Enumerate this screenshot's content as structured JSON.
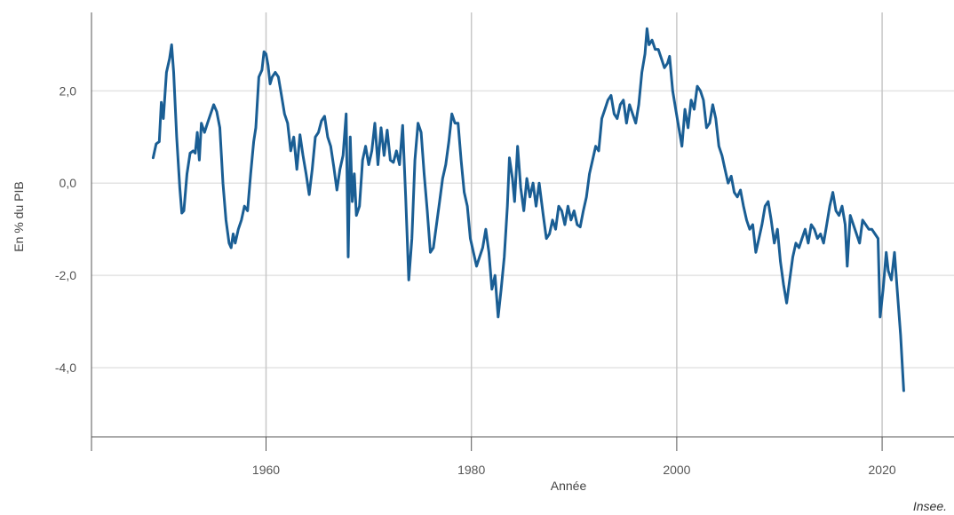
{
  "colors": {
    "series": "#1a5e94",
    "grid": "#e3e3e3",
    "vgrid": "#c8c8c8",
    "axis": "#555555"
  },
  "source_label": "Insee.",
  "chart_data": {
    "type": "line",
    "title": "",
    "xlabel": "Année",
    "ylabel": "En % du PIB",
    "xlim": [
      1943,
      2027
    ],
    "ylim": [
      -5.5,
      3.7
    ],
    "x_ticks": [
      1960,
      1980,
      2000,
      2020
    ],
    "x_tick_labels": [
      "1960",
      "1980",
      "2000",
      "2020"
    ],
    "y_ticks": [
      -4,
      -2,
      0,
      2
    ],
    "y_tick_labels": [
      "-4,0",
      "-2,0",
      "0,0",
      "2,0"
    ],
    "grid": true,
    "legend": "none",
    "series": [
      {
        "points": [
          [
            1949.0,
            0.55
          ],
          [
            1949.3,
            0.85
          ],
          [
            1949.6,
            0.9
          ],
          [
            1949.8,
            1.75
          ],
          [
            1950.0,
            1.4
          ],
          [
            1950.3,
            2.4
          ],
          [
            1950.6,
            2.7
          ],
          [
            1950.8,
            3.0
          ],
          [
            1951.0,
            2.4
          ],
          [
            1951.3,
            1.0
          ],
          [
            1951.6,
            -0.1
          ],
          [
            1951.8,
            -0.65
          ],
          [
            1952.0,
            -0.6
          ],
          [
            1952.3,
            0.2
          ],
          [
            1952.6,
            0.65
          ],
          [
            1952.9,
            0.7
          ],
          [
            1953.1,
            0.65
          ],
          [
            1953.3,
            1.1
          ],
          [
            1953.5,
            0.5
          ],
          [
            1953.7,
            1.3
          ],
          [
            1954.0,
            1.1
          ],
          [
            1954.3,
            1.3
          ],
          [
            1954.6,
            1.5
          ],
          [
            1954.9,
            1.7
          ],
          [
            1955.2,
            1.55
          ],
          [
            1955.5,
            1.2
          ],
          [
            1955.8,
            0.0
          ],
          [
            1956.1,
            -0.8
          ],
          [
            1956.4,
            -1.3
          ],
          [
            1956.6,
            -1.4
          ],
          [
            1956.8,
            -1.1
          ],
          [
            1957.0,
            -1.3
          ],
          [
            1957.3,
            -1.0
          ],
          [
            1957.6,
            -0.8
          ],
          [
            1957.9,
            -0.5
          ],
          [
            1958.2,
            -0.6
          ],
          [
            1958.5,
            0.2
          ],
          [
            1958.8,
            0.9
          ],
          [
            1959.0,
            1.2
          ],
          [
            1959.3,
            2.3
          ],
          [
            1959.6,
            2.45
          ],
          [
            1959.8,
            2.85
          ],
          [
            1960.0,
            2.8
          ],
          [
            1960.2,
            2.55
          ],
          [
            1960.4,
            2.15
          ],
          [
            1960.6,
            2.3
          ],
          [
            1960.9,
            2.4
          ],
          [
            1961.2,
            2.3
          ],
          [
            1961.5,
            1.9
          ],
          [
            1961.8,
            1.5
          ],
          [
            1962.1,
            1.3
          ],
          [
            1962.4,
            0.7
          ],
          [
            1962.7,
            1.0
          ],
          [
            1963.0,
            0.3
          ],
          [
            1963.3,
            1.05
          ],
          [
            1963.6,
            0.6
          ],
          [
            1963.9,
            0.2
          ],
          [
            1964.2,
            -0.25
          ],
          [
            1964.5,
            0.3
          ],
          [
            1964.8,
            1.0
          ],
          [
            1965.1,
            1.1
          ],
          [
            1965.4,
            1.35
          ],
          [
            1965.7,
            1.45
          ],
          [
            1966.0,
            1.0
          ],
          [
            1966.3,
            0.8
          ],
          [
            1966.6,
            0.35
          ],
          [
            1966.9,
            -0.15
          ],
          [
            1967.2,
            0.3
          ],
          [
            1967.5,
            0.6
          ],
          [
            1967.8,
            1.5
          ],
          [
            1968.0,
            -1.6
          ],
          [
            1968.2,
            1.0
          ],
          [
            1968.4,
            -0.4
          ],
          [
            1968.6,
            0.2
          ],
          [
            1968.8,
            -0.7
          ],
          [
            1969.1,
            -0.5
          ],
          [
            1969.4,
            0.5
          ],
          [
            1969.7,
            0.8
          ],
          [
            1970.0,
            0.4
          ],
          [
            1970.3,
            0.7
          ],
          [
            1970.6,
            1.3
          ],
          [
            1970.9,
            0.4
          ],
          [
            1971.2,
            1.2
          ],
          [
            1971.5,
            0.6
          ],
          [
            1971.8,
            1.15
          ],
          [
            1972.1,
            0.5
          ],
          [
            1972.4,
            0.45
          ],
          [
            1972.7,
            0.7
          ],
          [
            1973.0,
            0.4
          ],
          [
            1973.3,
            1.25
          ],
          [
            1973.6,
            -0.3
          ],
          [
            1973.9,
            -2.1
          ],
          [
            1974.2,
            -1.2
          ],
          [
            1974.5,
            0.5
          ],
          [
            1974.8,
            1.3
          ],
          [
            1975.1,
            1.1
          ],
          [
            1975.4,
            0.2
          ],
          [
            1975.7,
            -0.6
          ],
          [
            1976.0,
            -1.5
          ],
          [
            1976.3,
            -1.4
          ],
          [
            1976.6,
            -0.9
          ],
          [
            1976.9,
            -0.4
          ],
          [
            1977.2,
            0.1
          ],
          [
            1977.5,
            0.4
          ],
          [
            1977.8,
            0.9
          ],
          [
            1978.1,
            1.5
          ],
          [
            1978.4,
            1.3
          ],
          [
            1978.7,
            1.3
          ],
          [
            1979.0,
            0.5
          ],
          [
            1979.3,
            -0.2
          ],
          [
            1979.6,
            -0.5
          ],
          [
            1979.9,
            -1.2
          ],
          [
            1980.2,
            -1.5
          ],
          [
            1980.5,
            -1.8
          ],
          [
            1980.8,
            -1.6
          ],
          [
            1981.1,
            -1.4
          ],
          [
            1981.4,
            -1.0
          ],
          [
            1981.7,
            -1.5
          ],
          [
            1982.0,
            -2.3
          ],
          [
            1982.3,
            -2.0
          ],
          [
            1982.6,
            -2.9
          ],
          [
            1982.9,
            -2.3
          ],
          [
            1983.2,
            -1.6
          ],
          [
            1983.5,
            -0.5
          ],
          [
            1983.7,
            0.55
          ],
          [
            1984.0,
            0.1
          ],
          [
            1984.2,
            -0.4
          ],
          [
            1984.5,
            0.8
          ],
          [
            1984.8,
            -0.1
          ],
          [
            1985.1,
            -0.6
          ],
          [
            1985.4,
            0.1
          ],
          [
            1985.7,
            -0.3
          ],
          [
            1986.0,
            0.0
          ],
          [
            1986.3,
            -0.5
          ],
          [
            1986.6,
            0.0
          ],
          [
            1987.0,
            -0.7
          ],
          [
            1987.3,
            -1.2
          ],
          [
            1987.6,
            -1.1
          ],
          [
            1987.9,
            -0.8
          ],
          [
            1988.2,
            -1.0
          ],
          [
            1988.5,
            -0.5
          ],
          [
            1988.8,
            -0.6
          ],
          [
            1989.1,
            -0.9
          ],
          [
            1989.4,
            -0.5
          ],
          [
            1989.7,
            -0.8
          ],
          [
            1990.0,
            -0.6
          ],
          [
            1990.3,
            -0.9
          ],
          [
            1990.6,
            -0.95
          ],
          [
            1990.9,
            -0.6
          ],
          [
            1991.2,
            -0.3
          ],
          [
            1991.5,
            0.2
          ],
          [
            1991.8,
            0.5
          ],
          [
            1992.1,
            0.8
          ],
          [
            1992.4,
            0.7
          ],
          [
            1992.7,
            1.4
          ],
          [
            1993.0,
            1.6
          ],
          [
            1993.3,
            1.8
          ],
          [
            1993.6,
            1.9
          ],
          [
            1993.9,
            1.5
          ],
          [
            1994.2,
            1.4
          ],
          [
            1994.5,
            1.7
          ],
          [
            1994.8,
            1.8
          ],
          [
            1995.1,
            1.3
          ],
          [
            1995.4,
            1.7
          ],
          [
            1995.7,
            1.5
          ],
          [
            1996.0,
            1.3
          ],
          [
            1996.3,
            1.7
          ],
          [
            1996.6,
            2.4
          ],
          [
            1996.9,
            2.8
          ],
          [
            1997.1,
            3.35
          ],
          [
            1997.3,
            3.0
          ],
          [
            1997.6,
            3.1
          ],
          [
            1997.9,
            2.9
          ],
          [
            1998.2,
            2.9
          ],
          [
            1998.5,
            2.7
          ],
          [
            1998.8,
            2.5
          ],
          [
            1999.1,
            2.6
          ],
          [
            1999.3,
            2.75
          ],
          [
            1999.6,
            2.0
          ],
          [
            1999.9,
            1.6
          ],
          [
            2000.2,
            1.2
          ],
          [
            2000.5,
            0.8
          ],
          [
            2000.8,
            1.6
          ],
          [
            2001.1,
            1.2
          ],
          [
            2001.4,
            1.8
          ],
          [
            2001.7,
            1.6
          ],
          [
            2002.0,
            2.1
          ],
          [
            2002.3,
            2.0
          ],
          [
            2002.6,
            1.8
          ],
          [
            2002.9,
            1.2
          ],
          [
            2003.2,
            1.3
          ],
          [
            2003.5,
            1.7
          ],
          [
            2003.8,
            1.4
          ],
          [
            2004.1,
            0.8
          ],
          [
            2004.4,
            0.6
          ],
          [
            2004.7,
            0.3
          ],
          [
            2005.0,
            0.0
          ],
          [
            2005.3,
            0.15
          ],
          [
            2005.6,
            -0.2
          ],
          [
            2005.9,
            -0.3
          ],
          [
            2006.2,
            -0.15
          ],
          [
            2006.5,
            -0.5
          ],
          [
            2006.8,
            -0.8
          ],
          [
            2007.1,
            -1.0
          ],
          [
            2007.4,
            -0.9
          ],
          [
            2007.7,
            -1.5
          ],
          [
            2008.0,
            -1.2
          ],
          [
            2008.3,
            -0.9
          ],
          [
            2008.6,
            -0.5
          ],
          [
            2008.9,
            -0.4
          ],
          [
            2009.2,
            -0.8
          ],
          [
            2009.5,
            -1.3
          ],
          [
            2009.8,
            -1.0
          ],
          [
            2010.1,
            -1.7
          ],
          [
            2010.4,
            -2.2
          ],
          [
            2010.7,
            -2.6
          ],
          [
            2011.0,
            -2.1
          ],
          [
            2011.3,
            -1.6
          ],
          [
            2011.6,
            -1.3
          ],
          [
            2011.9,
            -1.4
          ],
          [
            2012.2,
            -1.2
          ],
          [
            2012.5,
            -1.0
          ],
          [
            2012.8,
            -1.3
          ],
          [
            2013.1,
            -0.9
          ],
          [
            2013.4,
            -1.0
          ],
          [
            2013.7,
            -1.2
          ],
          [
            2014.0,
            -1.1
          ],
          [
            2014.3,
            -1.3
          ],
          [
            2014.6,
            -0.9
          ],
          [
            2014.9,
            -0.5
          ],
          [
            2015.2,
            -0.2
          ],
          [
            2015.5,
            -0.6
          ],
          [
            2015.8,
            -0.7
          ],
          [
            2016.1,
            -0.5
          ],
          [
            2016.4,
            -0.9
          ],
          [
            2016.6,
            -1.8
          ],
          [
            2016.9,
            -0.7
          ],
          [
            2017.2,
            -0.9
          ],
          [
            2017.5,
            -1.1
          ],
          [
            2017.8,
            -1.3
          ],
          [
            2018.1,
            -0.8
          ],
          [
            2018.4,
            -0.9
          ],
          [
            2018.7,
            -1.0
          ],
          [
            2019.0,
            -1.0
          ],
          [
            2019.3,
            -1.1
          ],
          [
            2019.6,
            -1.2
          ],
          [
            2019.8,
            -2.9
          ],
          [
            2020.1,
            -2.3
          ],
          [
            2020.4,
            -1.5
          ],
          [
            2020.6,
            -1.9
          ],
          [
            2020.9,
            -2.1
          ],
          [
            2021.2,
            -1.5
          ],
          [
            2021.5,
            -2.4
          ],
          [
            2021.8,
            -3.3
          ],
          [
            2022.1,
            -4.5
          ]
        ]
      }
    ]
  }
}
